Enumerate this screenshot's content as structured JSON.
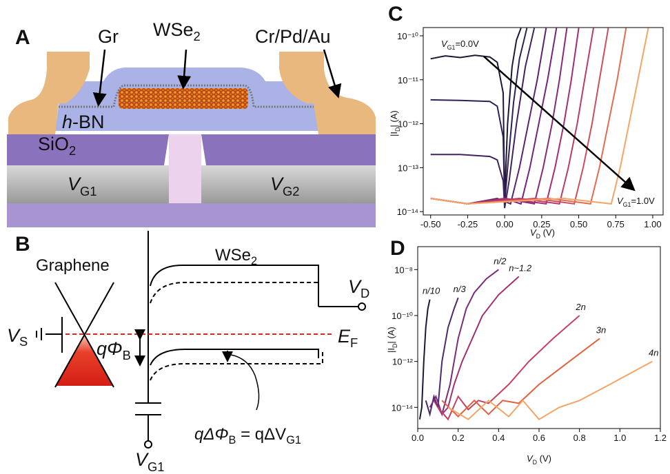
{
  "diagram": {
    "panel_a": {
      "letter": "A",
      "labels": {
        "gr": "Gr",
        "wse2": {
          "main": "WSe",
          "sub": "2"
        },
        "contact": "Cr/Pd/Au",
        "hbn": {
          "italic": "h",
          "rest": "-BN"
        },
        "sio2": {
          "main": "SiO",
          "sub": "2"
        },
        "vg1": {
          "main": "V",
          "sub": "G1"
        },
        "vg2": {
          "main": "V",
          "sub": "G2"
        }
      }
    },
    "panel_b": {
      "letter": "B",
      "labels": {
        "graphene": "Graphene",
        "wse2": {
          "main": "WSe",
          "sub": "2"
        },
        "vs": {
          "main": "V",
          "sub": "S"
        },
        "phib": {
          "q": "q",
          "main": "Φ",
          "sub": "B"
        },
        "ef": {
          "main": "E",
          "sub": "F"
        },
        "vd": {
          "main": "V",
          "sub": "D"
        },
        "vg1": {
          "main": "V",
          "sub": "G1"
        },
        "relation": {
          "lhs": "qΔΦ",
          "lhs_sub": "B",
          "rhs": " = qΔV",
          "rhs_sub": "G1"
        }
      }
    }
  },
  "chart_data": [
    {
      "type": "line",
      "panel": "C",
      "log_y": true,
      "xlabel": {
        "main": "V",
        "sub": "D",
        "rest": " (V)"
      },
      "ylabel": {
        "main": "|I",
        "sub": "D",
        "rest": "| (A)"
      },
      "xlim": [
        -0.55,
        1.07
      ],
      "ylim": [
        8.4e-15,
        1.54e-10
      ],
      "xticks": [
        {
          "value": -0.5,
          "label": "-0.50"
        },
        -0.25,
        {
          "value": 0,
          "label": "0.00"
        },
        0.25,
        {
          "value": 0.5,
          "label": "0.50"
        },
        0.75,
        {
          "value": 1,
          "label": "1.00"
        }
      ],
      "yticks": [
        {
          "value": 1e-14,
          "label": "10⁻¹⁴"
        },
        {
          "value": 1e-13,
          "label": "10⁻¹³"
        },
        {
          "value": 1e-12,
          "label": "10⁻¹²"
        },
        {
          "value": 1e-11,
          "label": "10⁻¹¹"
        },
        {
          "value": 1e-10,
          "label": "10⁻¹⁰"
        }
      ],
      "annotations": [
        {
          "main": "V",
          "sub": "G1",
          "rest": "=0.0V"
        },
        {
          "main": "V",
          "sub": "G1",
          "rest": "=1.0V"
        }
      ],
      "series": [
        {
          "color": "#1c1833",
          "x": [
            -0.5,
            -0.4,
            -0.3,
            -0.2,
            -0.1,
            -0.05,
            -0.01,
            0.0,
            0.02,
            0.05,
            0.08,
            0.11
          ],
          "values": [
            3e-11,
            3.5e-11,
            3.2e-11,
            3.6e-11,
            3.3e-11,
            2.5e-11,
            5e-12,
            2e-14,
            1e-12,
            2e-11,
            8e-11,
            1.5e-10
          ]
        },
        {
          "color": "#2f1f52",
          "x": [
            -0.5,
            -0.3,
            -0.1,
            -0.05,
            -0.01,
            0.0,
            0.02,
            0.06,
            0.1,
            0.15
          ],
          "values": [
            3.5e-12,
            3.4e-12,
            3.2e-12,
            2.5e-12,
            5e-13,
            1.5e-14,
            1e-13,
            3e-12,
            3e-11,
            1.5e-10
          ]
        },
        {
          "color": "#42215f",
          "x": [
            -0.5,
            -0.3,
            -0.1,
            -0.05,
            -0.01,
            0.0,
            0.03,
            0.08,
            0.14,
            0.2
          ],
          "values": [
            2e-13,
            2e-13,
            1.8e-13,
            1.5e-13,
            5e-14,
            1.2e-14,
            5e-14,
            1e-12,
            2e-11,
            1.5e-10
          ]
        },
        {
          "color": "#5a2270",
          "x": [
            -0.5,
            -0.25,
            -0.05,
            0.04,
            0.1,
            0.16,
            0.22,
            0.28
          ],
          "values": [
            2e-14,
            1.5e-14,
            2e-14,
            1.5e-14,
            1e-13,
            1e-12,
            1e-11,
            1.5e-10
          ]
        },
        {
          "color": "#72247a",
          "x": [
            -0.5,
            -0.25,
            0.0,
            0.11,
            0.17,
            0.23,
            0.29,
            0.35
          ],
          "values": [
            2e-14,
            1.5e-14,
            2e-14,
            1.5e-14,
            1e-13,
            1e-12,
            1e-11,
            1.5e-10
          ]
        },
        {
          "color": "#8a2878",
          "x": [
            -0.5,
            -0.25,
            0.0,
            0.2,
            0.26,
            0.32,
            0.37,
            0.42
          ],
          "values": [
            2e-14,
            1.5e-14,
            2e-14,
            1.5e-14,
            1e-13,
            1e-12,
            1e-11,
            1.5e-10
          ]
        },
        {
          "color": "#a22e72",
          "x": [
            -0.5,
            -0.25,
            0.0,
            0.28,
            0.34,
            0.4,
            0.45,
            0.5
          ],
          "values": [
            2e-14,
            1.5e-14,
            2e-14,
            1.5e-14,
            1e-13,
            1e-12,
            1e-11,
            1.5e-10
          ]
        },
        {
          "color": "#ba3a68",
          "x": [
            -0.5,
            -0.25,
            0.1,
            0.37,
            0.43,
            0.49,
            0.54,
            0.6
          ],
          "values": [
            2e-14,
            1.5e-14,
            2e-14,
            1.5e-14,
            1e-13,
            1e-12,
            1e-11,
            1.5e-10
          ]
        },
        {
          "color": "#d04c5c",
          "x": [
            -0.5,
            -0.25,
            0.2,
            0.47,
            0.53,
            0.59,
            0.64,
            0.7
          ],
          "values": [
            2e-14,
            1.5e-14,
            2e-14,
            1.5e-14,
            1e-13,
            1e-12,
            1e-11,
            1.5e-10
          ]
        },
        {
          "color": "#e46a52",
          "x": [
            -0.5,
            -0.25,
            0.3,
            0.58,
            0.64,
            0.7,
            0.76,
            0.82
          ],
          "values": [
            2e-14,
            1.5e-14,
            2e-14,
            1.5e-14,
            1e-13,
            1e-12,
            1e-11,
            1.5e-10
          ]
        },
        {
          "color": "#f4a466",
          "x": [
            -0.5,
            -0.25,
            0.4,
            0.72,
            0.78,
            0.84,
            0.9,
            0.97
          ],
          "values": [
            2e-14,
            1.5e-14,
            2e-14,
            1.5e-14,
            1e-13,
            1e-12,
            1e-11,
            1.5e-10
          ]
        }
      ]
    },
    {
      "type": "line",
      "panel": "D",
      "log_y": true,
      "xlabel": {
        "main": "V",
        "sub": "D",
        "rest": " (V)"
      },
      "ylabel": {
        "main": "|I",
        "sub": "D",
        "rest": "| (A)"
      },
      "xlim": [
        0,
        1.2
      ],
      "ylim": [
        1.2e-15,
        1e-07
      ],
      "xticks": [
        {
          "value": 0,
          "label": "0.0"
        },
        0.2,
        0.4,
        0.6,
        0.8,
        {
          "value": 1,
          "label": "1.0"
        },
        1.2
      ],
      "yticks": [
        {
          "value": 1e-14,
          "label": "10⁻¹⁴"
        },
        {
          "value": 1e-12,
          "label": "10⁻¹²"
        },
        {
          "value": 1e-10,
          "label": "10⁻¹⁰"
        },
        {
          "value": 1e-08,
          "label": "10⁻⁸"
        }
      ],
      "series": [
        {
          "name": "n/10",
          "color": "#1c1833",
          "x": [
            0.01,
            0.02,
            0.03,
            0.04,
            0.05,
            0.06
          ],
          "values": [
            3e-15,
            1e-14,
            1e-12,
            3e-11,
            2e-10,
            5e-10
          ]
        },
        {
          "name": "n/3",
          "color": "#4a2a6a",
          "x": [
            0.04,
            0.06,
            0.08,
            0.1,
            0.12,
            0.15,
            0.18,
            0.2
          ],
          "values": [
            2e-14,
            5e-15,
            3e-14,
            1e-14,
            1e-12,
            3e-11,
            2e-10,
            6e-10
          ]
        },
        {
          "name": "n/2",
          "color": "#7a2a7a",
          "x": [
            0.06,
            0.09,
            0.12,
            0.16,
            0.2,
            0.24,
            0.28,
            0.34,
            0.4
          ],
          "values": [
            1e-14,
            3e-14,
            5e-15,
            1e-13,
            1e-11,
            2e-10,
            1e-09,
            4e-09,
            1e-08
          ]
        },
        {
          "name": "n~1.2",
          "color": "#a03070",
          "x": [
            0.08,
            0.12,
            0.15,
            0.18,
            0.22,
            0.27,
            0.32,
            0.4,
            0.5
          ],
          "values": [
            2e-14,
            5e-15,
            1e-14,
            1e-13,
            1e-12,
            1e-11,
            1e-10,
            8e-10,
            5e-09
          ]
        },
        {
          "name": "2n",
          "color": "#c84060",
          "x": [
            0.1,
            0.15,
            0.2,
            0.25,
            0.3,
            0.35,
            0.45,
            0.55,
            0.67,
            0.8
          ],
          "values": [
            1e-14,
            3e-15,
            3e-14,
            8e-15,
            2e-14,
            1.5e-14,
            1e-13,
            1e-12,
            1e-11,
            1e-10
          ]
        },
        {
          "name": "3n",
          "color": "#e06040",
          "x": [
            0.12,
            0.2,
            0.28,
            0.35,
            0.42,
            0.5,
            0.6,
            0.75,
            0.9
          ],
          "values": [
            2e-14,
            4e-15,
            2e-14,
            5e-15,
            2e-14,
            1.5e-14,
            1e-13,
            1e-12,
            1e-11
          ]
        },
        {
          "name": "4n",
          "color": "#f4a466",
          "x": [
            0.15,
            0.25,
            0.35,
            0.45,
            0.52,
            0.6,
            0.7,
            0.8,
            0.95,
            1.16
          ],
          "values": [
            1e-14,
            3e-15,
            2e-14,
            4e-15,
            2e-14,
            3e-15,
            1e-14,
            2e-14,
            1e-13,
            1e-12
          ]
        }
      ]
    }
  ]
}
